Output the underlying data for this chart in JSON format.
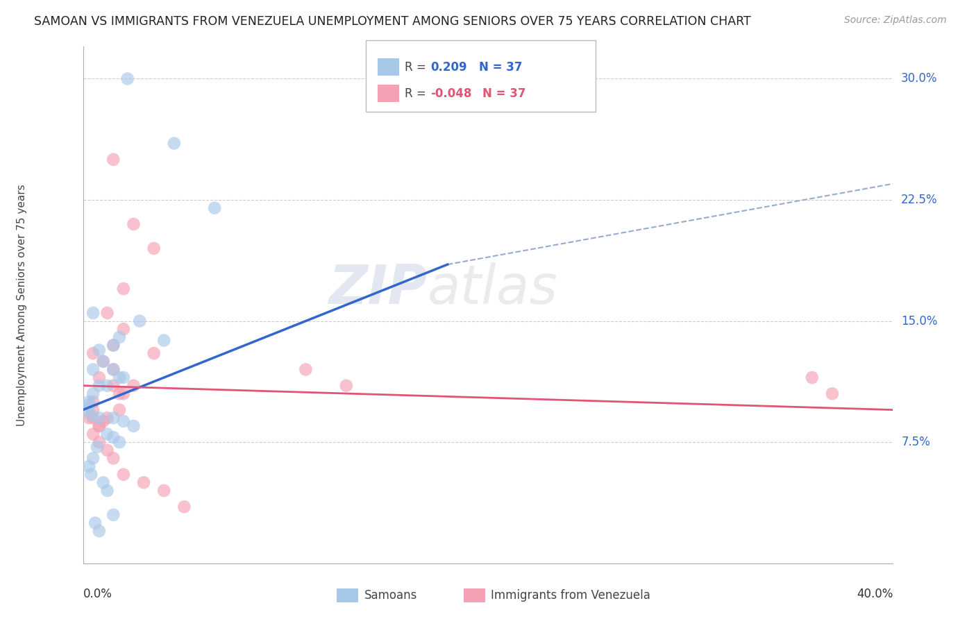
{
  "title": "SAMOAN VS IMMIGRANTS FROM VENEZUELA UNEMPLOYMENT AMONG SENIORS OVER 75 YEARS CORRELATION CHART",
  "source": "Source: ZipAtlas.com",
  "ylabel": "Unemployment Among Seniors over 75 years",
  "xlim": [
    0.0,
    40.0
  ],
  "ylim": [
    0.0,
    32.0
  ],
  "yticks": [
    7.5,
    15.0,
    22.5,
    30.0
  ],
  "ytick_labels": [
    "7.5%",
    "15.0%",
    "22.5%",
    "30.0%"
  ],
  "blue_color": "#a8c8e8",
  "pink_color": "#f4a0b5",
  "blue_line_color": "#3366cc",
  "pink_line_color": "#e05575",
  "watermark_zip": "ZIP",
  "watermark_atlas": "atlas",
  "background_color": "#ffffff",
  "grid_color": "#cccccc",
  "blue_scatter_x": [
    2.2,
    4.5,
    6.5,
    0.5,
    1.8,
    1.5,
    0.8,
    1.0,
    0.5,
    1.5,
    2.0,
    1.8,
    1.2,
    0.8,
    0.5,
    0.3,
    0.3,
    0.2,
    0.4,
    0.8,
    1.5,
    2.0,
    2.5,
    2.8,
    4.0,
    1.2,
    1.5,
    1.8,
    0.7,
    0.5,
    0.3,
    0.4,
    1.0,
    1.2,
    1.5,
    0.6,
    0.8
  ],
  "blue_scatter_y": [
    30.0,
    26.0,
    22.0,
    15.5,
    14.0,
    13.5,
    13.2,
    12.5,
    12.0,
    12.0,
    11.5,
    11.5,
    11.0,
    11.0,
    10.5,
    10.0,
    9.8,
    9.5,
    9.2,
    9.0,
    9.0,
    8.8,
    8.5,
    15.0,
    13.8,
    8.0,
    7.8,
    7.5,
    7.2,
    6.5,
    6.0,
    5.5,
    5.0,
    4.5,
    3.0,
    2.5,
    2.0
  ],
  "pink_scatter_x": [
    1.5,
    2.5,
    3.5,
    2.0,
    1.2,
    2.0,
    1.5,
    0.5,
    1.0,
    1.5,
    0.8,
    1.5,
    2.0,
    1.8,
    0.5,
    0.5,
    0.3,
    0.5,
    1.0,
    0.8,
    11.0,
    13.0,
    36.0,
    37.0,
    3.5,
    2.5,
    1.8,
    1.2,
    0.8,
    0.5,
    0.8,
    1.2,
    1.5,
    2.0,
    3.0,
    4.0,
    5.0
  ],
  "pink_scatter_y": [
    25.0,
    21.0,
    19.5,
    17.0,
    15.5,
    14.5,
    13.5,
    13.0,
    12.5,
    12.0,
    11.5,
    11.0,
    10.5,
    10.5,
    10.0,
    9.5,
    9.0,
    9.0,
    8.8,
    8.5,
    12.0,
    11.0,
    11.5,
    10.5,
    13.0,
    11.0,
    9.5,
    9.0,
    8.5,
    8.0,
    7.5,
    7.0,
    6.5,
    5.5,
    5.0,
    4.5,
    3.5
  ],
  "blue_line_x0": 0.0,
  "blue_line_y0": 9.5,
  "blue_line_x1": 18.0,
  "blue_line_y1": 18.5,
  "blue_dash_x0": 18.0,
  "blue_dash_y0": 18.5,
  "blue_dash_x1": 40.0,
  "blue_dash_y1": 23.5,
  "pink_line_x0": 0.0,
  "pink_line_y0": 11.0,
  "pink_line_x1": 40.0,
  "pink_line_y1": 9.5
}
